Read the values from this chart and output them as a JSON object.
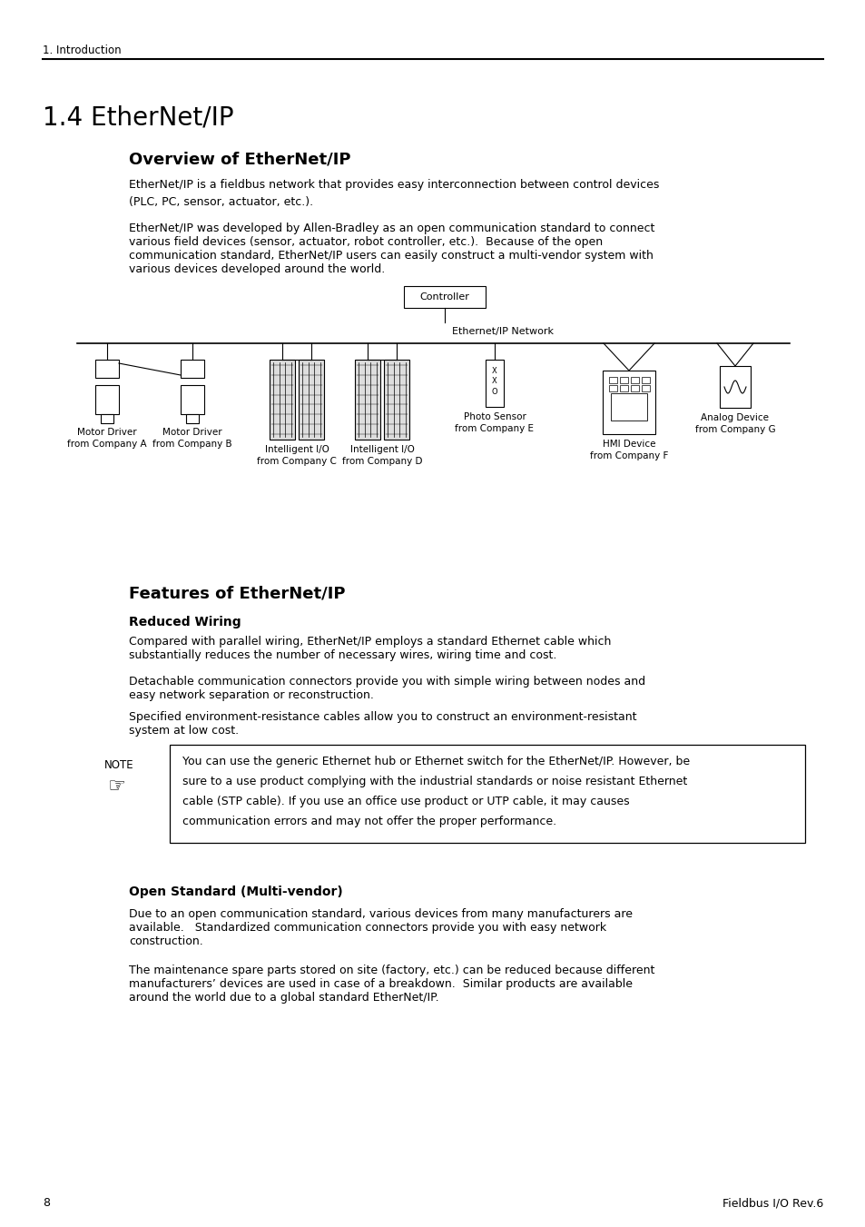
{
  "bg_color": "#ffffff",
  "header_text": "1. Introduction",
  "title_14": "1.4 EtherNet/IP",
  "section1_title": "Overview of EtherNet/IP",
  "section1_p1": "EtherNet/IP is a fieldbus network that provides easy interconnection between control devices\n(PLC, PC, sensor, actuator, etc.).",
  "section1_p2_line1": "EtherNet/IP was developed by Allen-Bradley as an open communication standard to connect",
  "section1_p2_line2": "various field devices (sensor, actuator, robot controller, etc.).  Because of the open",
  "section1_p2_line3": "communication standard, EtherNet/IP users can easily construct a multi-vendor system with",
  "section1_p2_line4": "various devices developed around the world.",
  "section2_title": "Features of EtherNet/IP",
  "reduced_wiring_title": "Reduced Wiring",
  "rw_p1_line1": "Compared with parallel wiring, EtherNet/IP employs a standard Ethernet cable which",
  "rw_p1_line2": "substantially reduces the number of necessary wires, wiring time and cost.",
  "rw_p2_line1": "Detachable communication connectors provide you with simple wiring between nodes and",
  "rw_p2_line2": "easy network separation or reconstruction.",
  "rw_p3_line1": "Specified environment-resistance cables allow you to construct an environment-resistant",
  "rw_p3_line2": "system at low cost.",
  "note_label": "NOTE",
  "note_body_line1": "You can use the generic Ethernet hub or Ethernet switch for the EtherNet/IP. However, be",
  "note_body_line2": "sure to a use product complying with the industrial standards or noise resistant Ethernet",
  "note_body_line3": "cable (STP cable). If you use an office use product or UTP cable, it may causes",
  "note_body_line4": "communication errors and may not offer the proper performance.",
  "open_standard_title": "Open Standard (Multi-vendor)",
  "os_p1_line1": "Due to an open communication standard, various devices from many manufacturers are",
  "os_p1_line2": "available.   Standardized communication connectors provide you with easy network",
  "os_p1_line3": "construction.",
  "os_p2_line1": "The maintenance spare parts stored on site (factory, etc.) can be reduced because different",
  "os_p2_line2": "manufacturers’ devices are used in case of a breakdown.  Similar products are available",
  "os_p2_line3": "around the world due to a global standard EtherNet/IP.",
  "footer_page": "8",
  "footer_text": "Fieldbus I/O Rev.6"
}
